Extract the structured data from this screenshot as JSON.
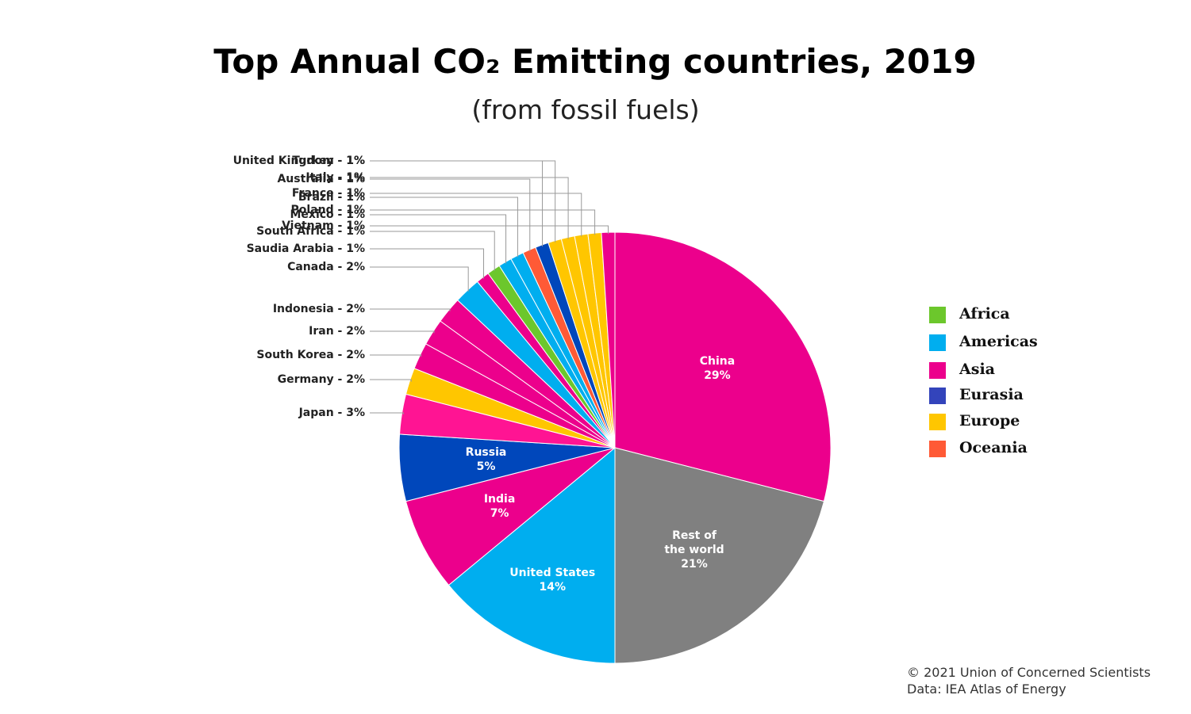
{
  "chart_data": {
    "type": "pie",
    "title": "Top Annual CO₂ Emitting countries, 2019",
    "subtitle": "(from fossil fuels)",
    "categories": [
      "China",
      "Rest of the world",
      "United States",
      "India",
      "Russia",
      "Japan",
      "Germany",
      "South Korea",
      "Iran",
      "Indonesia",
      "Canada",
      "Saudia Arabia",
      "South Africa",
      "Mexico",
      "Brazil",
      "Australia",
      "Turkey",
      "United Kingdom",
      "Italy",
      "France",
      "Poland",
      "Vietnam"
    ],
    "values": [
      29,
      21,
      14,
      7,
      5,
      3,
      2,
      2,
      2,
      2,
      2,
      1,
      1,
      1,
      1,
      1,
      1,
      1,
      1,
      1,
      1,
      1
    ],
    "value_labels": [
      "29%",
      "21%",
      "14%",
      "7%",
      "5%",
      "Japan - 3%",
      "Germany - 2%",
      "South Korea - 2%",
      "Iran - 2%",
      "Indonesia - 2%",
      "Canada - 2%",
      "Saudia Arabia - 1%",
      "South Africa - 1%",
      "Mexico - 1%",
      "Brazil - 1%",
      "Australia - 1%",
      "Turkey - 1%",
      "United Kingdom - 1%",
      "Italy - 1%",
      "France - 1%",
      "Poland - 1%",
      "Vietnam - 1%"
    ],
    "colors": [
      "#ec008c",
      "#808080",
      "#00aeef",
      "#ec008c",
      "#0047bb",
      "#ff1493",
      "#ffc600",
      "#ec008c",
      "#ec008c",
      "#ec008c",
      "#00aeef",
      "#ec008c",
      "#6cc72c",
      "#00aeef",
      "#00aeef",
      "#ff5a36",
      "#0047bb",
      "#ffc600",
      "#ffc600",
      "#ffc600",
      "#ffc600",
      "#ec008c"
    ],
    "legend": [
      {
        "name": "Africa",
        "color": "#6cc72c"
      },
      {
        "name": "Americas",
        "color": "#00aeef"
      },
      {
        "name": "Asia",
        "color": "#ec008c"
      },
      {
        "name": "Eurasia",
        "color": "#3344bb"
      },
      {
        "name": "Europe",
        "color": "#ffc600"
      },
      {
        "name": "Oceania",
        "color": "#ff5a36"
      }
    ],
    "legend_position": "right",
    "source": [
      "© 2021 Union of Concerned Scientists",
      "Data: IEA Atlas of Energy"
    ]
  }
}
